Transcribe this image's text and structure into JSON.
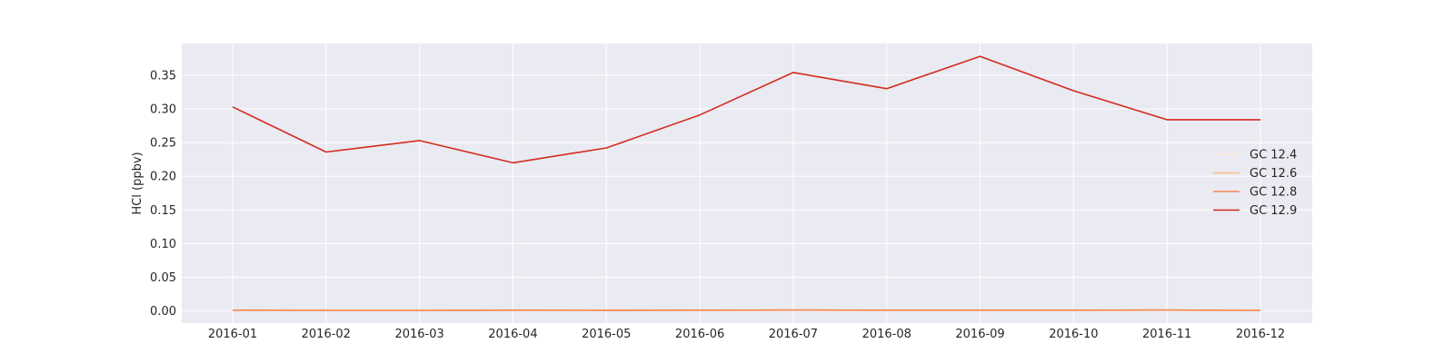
{
  "chart_data": {
    "type": "line",
    "title": "",
    "xlabel": "",
    "ylabel": "HCl (ppbv)",
    "x": [
      "2016-01",
      "2016-02",
      "2016-03",
      "2016-04",
      "2016-05",
      "2016-06",
      "2016-07",
      "2016-08",
      "2016-09",
      "2016-10",
      "2016-11",
      "2016-12"
    ],
    "ylim": [
      -0.018,
      0.397
    ],
    "yticks": [
      0.0,
      0.05,
      0.1,
      0.15,
      0.2,
      0.25,
      0.3,
      0.35
    ],
    "ytick_labels": [
      "0.00",
      "0.05",
      "0.10",
      "0.15",
      "0.20",
      "0.25",
      "0.30",
      "0.35"
    ],
    "grid": true,
    "legend_position": "right",
    "background_color": "#eaeaf2",
    "series": [
      {
        "name": "GC 12.4",
        "color": "#fee8d4",
        "values": [
          0.0012,
          0.0008,
          0.0009,
          0.0011,
          0.001,
          0.0011,
          0.0013,
          0.0011,
          0.0011,
          0.0012,
          0.0013,
          0.0009
        ]
      },
      {
        "name": "GC 12.6",
        "color": "#fdbe85",
        "values": [
          0.0012,
          0.0008,
          0.0009,
          0.0011,
          0.001,
          0.0011,
          0.0013,
          0.0011,
          0.0011,
          0.0012,
          0.0013,
          0.0009
        ]
      },
      {
        "name": "GC 12.8",
        "color": "#f4844f",
        "values": [
          0.0012,
          0.0008,
          0.0009,
          0.0011,
          0.001,
          0.0011,
          0.0013,
          0.0011,
          0.0011,
          0.0012,
          0.0013,
          0.0009
        ]
      },
      {
        "name": "GC 12.9",
        "color": "#d42b1e",
        "values": [
          0.303,
          0.236,
          0.253,
          0.22,
          0.242,
          0.291,
          0.354,
          0.33,
          0.378,
          0.327,
          0.284,
          0.284
        ]
      }
    ]
  }
}
